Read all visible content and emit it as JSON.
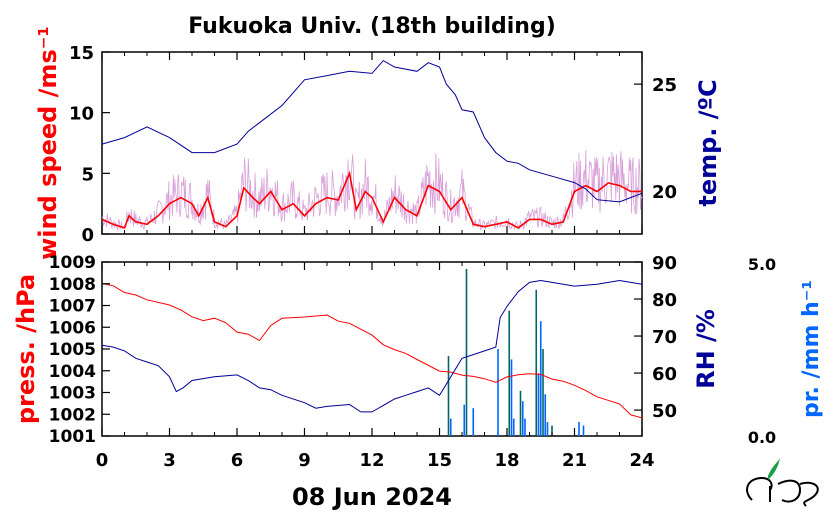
{
  "title": "Fukuoka Univ. (18th building)",
  "date_label": "08 Jun 2024",
  "colors": {
    "wind_raw": "#d9a0d9",
    "wind_avg": "#ff0000",
    "temp": "#000099",
    "press": "#ff0000",
    "rh": "#000099",
    "precip": "#0066ff",
    "precip_dark": "#006666"
  },
  "logo_text": "MES",
  "chart_data": [
    {
      "type": "line",
      "panel": "top",
      "xlim": [
        0,
        24
      ],
      "x_ticks": [
        "0",
        "3",
        "6",
        "9",
        "12",
        "15",
        "18",
        "21",
        "24"
      ],
      "left_axis": {
        "label": "wind speed /ms⁻¹",
        "ylim": [
          0,
          15
        ],
        "ticks": [
          "0",
          "5",
          "10",
          "15"
        ]
      },
      "right_axis": {
        "label": "temp. /ºC",
        "ylim": [
          18,
          26.5
        ],
        "ticks": [
          "20",
          "25"
        ]
      },
      "series": [
        {
          "name": "wind_avg",
          "axis": "left",
          "x": [
            0,
            0.5,
            1,
            1.2,
            1.5,
            2,
            2.5,
            3,
            3.5,
            4,
            4.3,
            4.7,
            5,
            5.5,
            6,
            6.3,
            6.7,
            7,
            7.5,
            8,
            8.5,
            9,
            9.5,
            10,
            10.5,
            11,
            11.3,
            11.7,
            12,
            12.5,
            13,
            13.5,
            14,
            14.5,
            15,
            15.5,
            16,
            16.5,
            17,
            17.5,
            18,
            18.5,
            19,
            19.5,
            20,
            20.5,
            21,
            21.5,
            22,
            22.5,
            23,
            23.5,
            24
          ],
          "y": [
            1.2,
            0.8,
            0.5,
            1.5,
            1,
            0.8,
            1.5,
            2.5,
            3,
            2.5,
            1.5,
            3,
            1,
            0.6,
            1.5,
            3.8,
            3,
            2.5,
            3.5,
            2,
            2.5,
            1.5,
            2.5,
            3,
            2.8,
            5,
            2,
            3.5,
            3,
            1,
            3,
            2,
            1.5,
            4,
            3.5,
            2,
            3,
            0.8,
            0.6,
            0.8,
            1,
            0.5,
            1.2,
            1.2,
            0.8,
            1,
            3.5,
            4,
            3.5,
            4.2,
            4,
            3.5,
            3.5
          ]
        },
        {
          "name": "temp",
          "axis": "right",
          "x": [
            0,
            1,
            2,
            3,
            4,
            4.5,
            5,
            6,
            6.5,
            7,
            8,
            9,
            10,
            11,
            12,
            12.5,
            13,
            14,
            14.5,
            15,
            15.3,
            15.7,
            16,
            16.5,
            17,
            17.5,
            18,
            18.5,
            19,
            20,
            21,
            21.5,
            22,
            23,
            24
          ],
          "y": [
            22.2,
            22.5,
            23,
            22.5,
            21.8,
            21.8,
            21.8,
            22.2,
            22.8,
            23.2,
            24,
            25.2,
            25.4,
            25.6,
            25.5,
            26.1,
            25.8,
            25.6,
            26,
            25.8,
            25,
            24.5,
            23.8,
            23.7,
            22.5,
            21.8,
            21.4,
            21.3,
            21,
            20.7,
            20.4,
            20.1,
            19.6,
            19.5,
            19.9
          ]
        }
      ]
    },
    {
      "type": "line",
      "panel": "bottom",
      "xlim": [
        0,
        24
      ],
      "x_ticks": [
        "0",
        "3",
        "6",
        "9",
        "12",
        "15",
        "18",
        "21",
        "24"
      ],
      "left_axis": {
        "label": "press. /hPa",
        "ylim": [
          1001,
          1009
        ],
        "ticks": [
          "1001",
          "1002",
          "1003",
          "1004",
          "1005",
          "1006",
          "1007",
          "1008",
          "1009"
        ]
      },
      "right_axis": {
        "label": "RH /%",
        "ylim": [
          43,
          90
        ],
        "ticks": [
          "50",
          "60",
          "70",
          "80",
          "90"
        ]
      },
      "precip_axis": {
        "label": "pr. /mm h⁻¹",
        "ylim": [
          0,
          5
        ],
        "top_label": "5.0",
        "bottom_label": "0.0"
      },
      "series": [
        {
          "name": "press",
          "axis": "left",
          "x": [
            0,
            0.5,
            1,
            1.5,
            2,
            3,
            3.5,
            4,
            4.5,
            5,
            5.5,
            6,
            6.5,
            7,
            7.5,
            8,
            9,
            10,
            10.5,
            11,
            12,
            12.5,
            13,
            13.5,
            14,
            15,
            15.5,
            16,
            16.5,
            17,
            17.5,
            18,
            18.5,
            19,
            19.5,
            20,
            20.5,
            21,
            21.5,
            22,
            23,
            23.5,
            24
          ],
          "y": [
            1008,
            1007.9,
            1007.6,
            1007.5,
            1007.3,
            1007,
            1006.8,
            1006.5,
            1006.3,
            1006.4,
            1006.2,
            1005.8,
            1005.7,
            1005.4,
            1006.1,
            1006.4,
            1006.5,
            1006.6,
            1006.3,
            1006.2,
            1005.6,
            1005.2,
            1005,
            1004.8,
            1004.5,
            1004,
            1003.9,
            1003.8,
            1003.7,
            1003.6,
            1003.5,
            1003.7,
            1003.8,
            1003.9,
            1003.8,
            1003.6,
            1003.5,
            1003.3,
            1003.1,
            1002.8,
            1002.5,
            1002,
            1001.8
          ]
        },
        {
          "name": "rh",
          "axis": "right",
          "x": [
            0,
            0.5,
            1,
            1.5,
            2,
            2.5,
            3,
            3.3,
            3.6,
            4,
            5,
            6,
            6.5,
            7,
            7.5,
            8,
            9,
            9.5,
            10,
            11,
            11.5,
            12,
            13,
            13.5,
            14,
            14.5,
            15,
            15.3,
            15.7,
            16,
            16.5,
            17,
            17.5,
            17.7,
            18,
            18.5,
            19,
            19.5,
            20,
            20.5,
            21,
            22,
            23,
            23.5,
            24
          ],
          "y": [
            67.5,
            67,
            66,
            64,
            63,
            62,
            59,
            55,
            56,
            58,
            59,
            59.5,
            58,
            56,
            55.5,
            54,
            52,
            50.5,
            51,
            51.5,
            49.5,
            49.5,
            53,
            54,
            55,
            56,
            54,
            57,
            61,
            64,
            65,
            66,
            67,
            75,
            78,
            82,
            84.5,
            85,
            84.5,
            84,
            83.5,
            84,
            85,
            84.5,
            84
          ]
        },
        {
          "name": "precip",
          "axis": "precip",
          "type": "bar",
          "x": [
            15.4,
            15.5,
            16.1,
            16.2,
            16.5,
            17.6,
            18.1,
            18.2,
            18.3,
            18.6,
            18.7,
            18.8,
            19.3,
            19.4,
            19.5,
            19.6,
            19.7,
            19.8,
            20,
            21.2,
            21.4
          ],
          "y": [
            2.3,
            0.5,
            0.9,
            4.8,
            0.8,
            2.5,
            3.6,
            2.2,
            0.5,
            1.3,
            1.0,
            0.5,
            4.2,
            1.8,
            3.3,
            2.5,
            1.2,
            0.4,
            0.3,
            0.4,
            0.3
          ]
        }
      ]
    }
  ]
}
